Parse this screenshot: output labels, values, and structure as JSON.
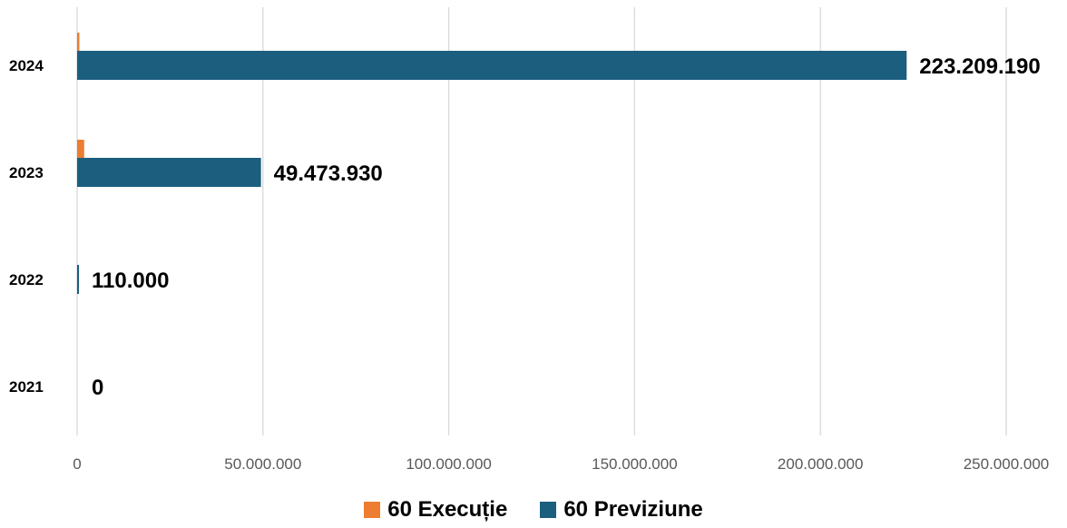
{
  "chart_data": {
    "type": "bar",
    "orientation": "horizontal",
    "categories": [
      "2024",
      "2023",
      "2022",
      "2021"
    ],
    "series": [
      {
        "name": "60 Execuție",
        "color": "#ED7D31",
        "values": [
          600000,
          1900000,
          0,
          0
        ]
      },
      {
        "name": "60 Previziune",
        "color": "#1B5E7E",
        "values": [
          223209190,
          49473930,
          110000,
          0
        ],
        "data_labels": [
          "223.209.190",
          "49.473.930",
          "110.000",
          "0"
        ]
      }
    ],
    "x_ticks": [
      "0",
      "50.000.000",
      "100.000.000",
      "150.000.000",
      "200.000.000",
      "250.000.000"
    ],
    "xlim": [
      0,
      250000000
    ],
    "grid": "vertical",
    "legend_position": "bottom"
  }
}
